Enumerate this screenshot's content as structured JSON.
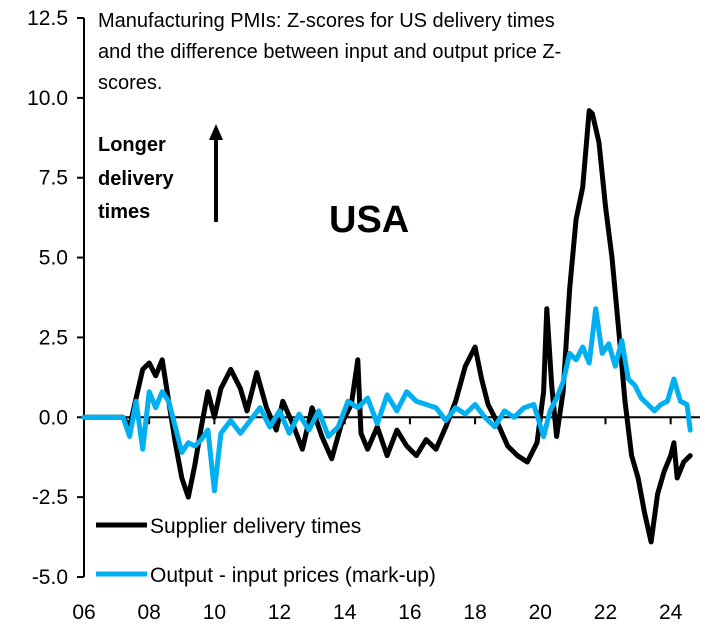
{
  "chart_data": {
    "type": "line",
    "title": "Manufacturing PMIs: Z-scores for US delivery times and the difference between input and output price Z-scores.",
    "title_lines": [
      "Manufacturing PMIs: Z-scores for US delivery times",
      "and the difference between input and output price Z-",
      "scores."
    ],
    "annotation": {
      "lines": [
        "Longer",
        "delivery",
        "times"
      ],
      "arrow": "up"
    },
    "country_label": "USA",
    "xlabel": "",
    "ylabel": "",
    "xlim": [
      2006,
      2024.9
    ],
    "ylim": [
      -5.0,
      12.5
    ],
    "x_ticks": [
      2006,
      2008,
      2010,
      2012,
      2014,
      2016,
      2018,
      2020,
      2022,
      2024
    ],
    "x_tick_labels": [
      "06",
      "08",
      "10",
      "12",
      "14",
      "16",
      "18",
      "20",
      "22",
      "24"
    ],
    "y_ticks": [
      -5.0,
      -2.5,
      0.0,
      2.5,
      5.0,
      7.5,
      10.0,
      12.5
    ],
    "y_tick_labels": [
      "-5.0",
      "-2.5",
      "0.0",
      "2.5",
      "5.0",
      "7.5",
      "10.0",
      "12.5"
    ],
    "grid": false,
    "legend_position": "bottom-left",
    "series": [
      {
        "name": "Supplier delivery times",
        "color": "#000000",
        "x": [
          2006.0,
          2007.2,
          2007.4,
          2007.6,
          2007.8,
          2008.0,
          2008.2,
          2008.4,
          2008.6,
          2008.8,
          2009.0,
          2009.2,
          2009.4,
          2009.6,
          2009.8,
          2010.0,
          2010.2,
          2010.5,
          2010.8,
          2011.0,
          2011.3,
          2011.6,
          2011.9,
          2012.1,
          2012.4,
          2012.7,
          2013.0,
          2013.3,
          2013.6,
          2013.9,
          2014.2,
          2014.4,
          2014.5,
          2014.7,
          2015.0,
          2015.3,
          2015.6,
          2015.9,
          2016.2,
          2016.5,
          2016.8,
          2017.1,
          2017.4,
          2017.7,
          2018.0,
          2018.2,
          2018.4,
          2018.7,
          2019.0,
          2019.3,
          2019.6,
          2019.9,
          2020.1,
          2020.2,
          2020.35,
          2020.5,
          2020.7,
          2020.9,
          2021.1,
          2021.3,
          2021.5,
          2021.6,
          2021.8,
          2022.0,
          2022.2,
          2022.4,
          2022.6,
          2022.8,
          2023.0,
          2023.2,
          2023.4,
          2023.6,
          2023.8,
          2024.0,
          2024.1,
          2024.2,
          2024.4,
          2024.6
        ],
        "values": [
          0.0,
          0.0,
          -0.3,
          0.6,
          1.5,
          1.7,
          1.3,
          1.8,
          0.5,
          -0.8,
          -1.9,
          -2.5,
          -1.5,
          -0.3,
          0.8,
          0.0,
          0.9,
          1.5,
          0.9,
          0.2,
          1.4,
          0.3,
          -0.4,
          0.5,
          -0.2,
          -1.0,
          0.3,
          -0.6,
          -1.3,
          -0.2,
          0.4,
          1.8,
          -0.5,
          -1.0,
          -0.3,
          -1.2,
          -0.4,
          -0.9,
          -1.2,
          -0.7,
          -1.0,
          -0.3,
          0.5,
          1.6,
          2.2,
          1.2,
          0.4,
          -0.2,
          -0.9,
          -1.2,
          -1.4,
          -0.8,
          0.8,
          3.4,
          1.0,
          -0.6,
          0.8,
          4.0,
          6.2,
          7.2,
          9.6,
          9.5,
          8.6,
          6.6,
          5.0,
          2.8,
          0.5,
          -1.2,
          -1.9,
          -3.0,
          -3.9,
          -2.4,
          -1.7,
          -1.2,
          -0.8,
          -1.9,
          -1.4,
          -1.2
        ]
      },
      {
        "name": "Output - input prices (mark-up)",
        "color": "#00B0F0",
        "x": [
          2006.0,
          2007.2,
          2007.4,
          2007.6,
          2007.8,
          2008.0,
          2008.2,
          2008.4,
          2008.6,
          2008.8,
          2009.0,
          2009.2,
          2009.4,
          2009.6,
          2009.8,
          2010.0,
          2010.2,
          2010.5,
          2010.8,
          2011.1,
          2011.4,
          2011.7,
          2012.0,
          2012.3,
          2012.6,
          2012.9,
          2013.2,
          2013.5,
          2013.8,
          2014.1,
          2014.4,
          2014.7,
          2015.0,
          2015.3,
          2015.6,
          2015.9,
          2016.2,
          2016.5,
          2016.8,
          2017.1,
          2017.4,
          2017.7,
          2018.0,
          2018.3,
          2018.6,
          2018.9,
          2019.2,
          2019.5,
          2019.8,
          2020.1,
          2020.3,
          2020.5,
          2020.7,
          2020.9,
          2021.1,
          2021.3,
          2021.5,
          2021.7,
          2021.9,
          2022.1,
          2022.3,
          2022.5,
          2022.7,
          2022.9,
          2023.1,
          2023.3,
          2023.5,
          2023.7,
          2023.9,
          2024.1,
          2024.3,
          2024.5,
          2024.6
        ],
        "values": [
          0.0,
          0.0,
          -0.6,
          0.5,
          -1.0,
          0.8,
          0.3,
          0.8,
          0.5,
          -0.3,
          -1.1,
          -0.8,
          -0.9,
          -0.7,
          -0.4,
          -2.3,
          -0.5,
          -0.1,
          -0.5,
          -0.1,
          0.3,
          -0.3,
          0.2,
          -0.5,
          0.1,
          -0.4,
          0.2,
          -0.6,
          -0.3,
          0.5,
          0.3,
          0.6,
          -0.2,
          0.7,
          0.2,
          0.8,
          0.5,
          0.4,
          0.3,
          -0.1,
          0.3,
          0.1,
          0.4,
          0.0,
          -0.3,
          0.2,
          0.0,
          0.3,
          0.4,
          -0.6,
          0.2,
          0.6,
          1.1,
          2.0,
          1.8,
          2.2,
          1.7,
          3.4,
          2.0,
          2.3,
          1.6,
          2.4,
          1.2,
          1.0,
          0.6,
          0.4,
          0.2,
          0.4,
          0.5,
          1.2,
          0.5,
          0.4,
          -0.4
        ]
      }
    ]
  }
}
